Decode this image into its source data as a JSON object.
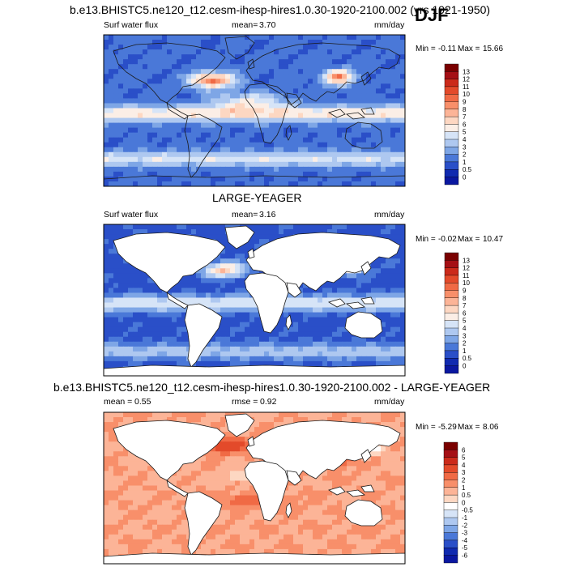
{
  "season": "DJF",
  "colors": {
    "ocean_deep": "#0a1fb0",
    "land": "#ffffff",
    "coast": "#1a1a1a"
  },
  "panels": [
    {
      "title": "b.e13.BHISTC5.ne120_t12.cesm-ihesp-hires1.0.30-1920-2100.002 (yrs 1921-1950)",
      "left_label": "Surf water flux",
      "middle_label": "mean=",
      "middle_value": "3.70",
      "units": "mm/day",
      "min_label": "Min =",
      "min_value": "-0.11",
      "max_label": "Max =",
      "max_value": "15.66",
      "colorbar": {
        "labels": [
          "13",
          "12",
          "11",
          "10",
          "9",
          "8",
          "7",
          "6",
          "5",
          "4",
          "3",
          "2",
          "1",
          "0.5",
          "0"
        ],
        "colors": [
          "#7a0000",
          "#a50f15",
          "#cb2a1a",
          "#e34a2a",
          "#f06a45",
          "#f88f6a",
          "#fcb497",
          "#fdd7c2",
          "#fbeee6",
          "#d6e4f7",
          "#aec8f0",
          "#7ea6e6",
          "#4a78d8",
          "#2a4fc8",
          "#102ab0",
          "#0a17a0"
        ]
      }
    },
    {
      "title": "LARGE-YEAGER",
      "left_label": "Surf water flux",
      "middle_label": "mean=",
      "middle_value": "3.16",
      "units": "mm/day",
      "min_label": "Min =",
      "min_value": "-0.02",
      "max_label": "Max =",
      "max_value": "10.47",
      "colorbar": {
        "labels": [
          "13",
          "12",
          "11",
          "10",
          "9",
          "8",
          "7",
          "6",
          "5",
          "4",
          "3",
          "2",
          "1",
          "0.5",
          "0"
        ],
        "colors": [
          "#7a0000",
          "#a50f15",
          "#cb2a1a",
          "#e34a2a",
          "#f06a45",
          "#f88f6a",
          "#fcb497",
          "#fdd7c2",
          "#fbeee6",
          "#d6e4f7",
          "#aec8f0",
          "#7ea6e6",
          "#4a78d8",
          "#2a4fc8",
          "#102ab0",
          "#0a17a0"
        ]
      }
    },
    {
      "title": "b.e13.BHISTC5.ne120_t12.cesm-ihesp-hires1.0.30-1920-2100.002 - LARGE-YEAGER",
      "left_label": "mean =",
      "left_value": "0.55",
      "middle_label": "rmse =",
      "middle_value": "0.92",
      "units": "mm/day",
      "min_label": "Min =",
      "min_value": "-5.29",
      "max_label": "Max =",
      "max_value": "8.06",
      "colorbar": {
        "labels": [
          "6",
          "5",
          "4",
          "3",
          "2",
          "1",
          "0.5",
          "0",
          "-0.5",
          "-1",
          "-2",
          "-3",
          "-4",
          "-5",
          "-6"
        ],
        "colors": [
          "#7a0000",
          "#a50f15",
          "#cb2a1a",
          "#e34a2a",
          "#f06a45",
          "#f88f6a",
          "#fcb497",
          "#fdd7c2",
          "#ffffff",
          "#d6e4f7",
          "#aec8f0",
          "#7ea6e6",
          "#4a78d8",
          "#2a4fc8",
          "#102ab0",
          "#0a17a0"
        ]
      }
    }
  ]
}
